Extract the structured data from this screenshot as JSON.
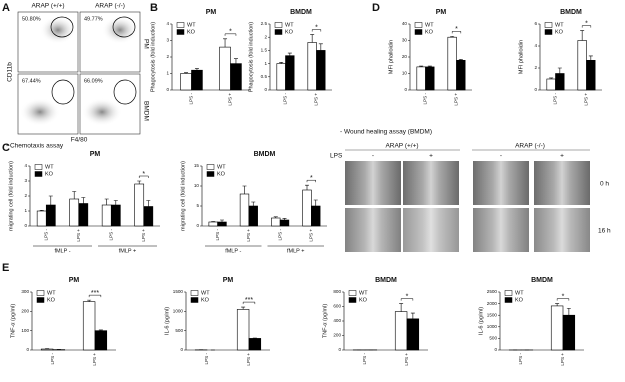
{
  "panel_labels": [
    "A",
    "B",
    "C",
    "D",
    "E"
  ],
  "flow_cytometry": {
    "columns": [
      "ARAP (+/+)",
      "ARAP (-/-)"
    ],
    "rows": [
      "PM",
      "BMDM"
    ],
    "percentages": [
      "50.80%",
      "49.77%",
      "67.44%",
      "66.09%"
    ],
    "y_axis": "CD11b",
    "x_axis": "F4/80"
  },
  "wound_healing": {
    "title": "- Wound healing assay (BMDM)",
    "columns": [
      "ARAP (+/+)",
      "ARAP (-/-)"
    ],
    "treatment": "LPS",
    "conditions": [
      "-",
      "+",
      "-",
      "+"
    ],
    "rows": [
      "0 h",
      "16 h"
    ]
  },
  "chart_data": [
    {
      "type": "bar",
      "title": "PM",
      "y_label": "Phagocytosis (fold induction)",
      "categories": [
        "LPS -",
        "LPS +"
      ],
      "series": [
        {
          "name": "WT",
          "color": "#ffffff",
          "values": [
            1.0,
            2.6
          ],
          "errors": [
            0.05,
            0.5
          ]
        },
        {
          "name": "KO",
          "color": "#000000",
          "values": [
            1.2,
            1.6
          ],
          "errors": [
            0.1,
            0.3
          ]
        }
      ],
      "ylim": [
        0,
        4
      ],
      "yticks": [
        0,
        1,
        2,
        3,
        4
      ],
      "legend": "top-left",
      "significance": "*"
    },
    {
      "type": "bar",
      "title": "BMDM",
      "y_label": "Phagocytosis (fold induction)",
      "categories": [
        "LPS -",
        "LPS +"
      ],
      "series": [
        {
          "name": "WT",
          "color": "#ffffff",
          "values": [
            1.0,
            1.8
          ],
          "errors": [
            0.05,
            0.3
          ]
        },
        {
          "name": "KO",
          "color": "#000000",
          "values": [
            1.3,
            1.5
          ],
          "errors": [
            0.1,
            0.25
          ]
        }
      ],
      "ylim": [
        0,
        2.5
      ],
      "yticks": [
        0,
        0.5,
        1,
        1.5,
        2,
        2.5
      ],
      "legend": "top-left",
      "significance": "*"
    },
    {
      "type": "bar",
      "title": "PM",
      "y_label": "MFI phalloidin",
      "categories": [
        "LPS -",
        "LPS +"
      ],
      "series": [
        {
          "name": "WT",
          "color": "#ffffff",
          "values": [
            14,
            32
          ],
          "errors": [
            0.5,
            0.5
          ]
        },
        {
          "name": "KO",
          "color": "#000000",
          "values": [
            14,
            18
          ],
          "errors": [
            0.5,
            0.5
          ]
        }
      ],
      "ylim": [
        0,
        40
      ],
      "yticks": [
        0,
        10,
        20,
        30,
        40
      ],
      "legend": "top-left",
      "significance": "*"
    },
    {
      "type": "bar",
      "title": "BMDM",
      "y_label": "MFI phalloidin",
      "categories": [
        "LPS -",
        "LPS +"
      ],
      "series": [
        {
          "name": "WT",
          "color": "#ffffff",
          "values": [
            1.0,
            4.5
          ],
          "errors": [
            0.1,
            0.9
          ]
        },
        {
          "name": "KO",
          "color": "#000000",
          "values": [
            1.5,
            2.7
          ],
          "errors": [
            0.5,
            0.4
          ]
        }
      ],
      "ylim": [
        0,
        6
      ],
      "yticks": [
        0,
        2,
        4,
        6
      ],
      "legend": "top-left",
      "significance": "*"
    },
    {
      "type": "bar",
      "title": "PM",
      "subtitle": "- Chemotaxis assay",
      "y_label": "migrating cell (fold induction)",
      "categories": [
        "LPS -",
        "LPS +",
        "LPS -",
        "LPS +"
      ],
      "group_labels": [
        "fMLP -",
        "fMLP +"
      ],
      "series": [
        {
          "name": "WT",
          "color": "#ffffff",
          "values": [
            1.0,
            1.8,
            1.4,
            2.8
          ],
          "errors": [
            0.05,
            0.5,
            0.4,
            0.2
          ]
        },
        {
          "name": "KO",
          "color": "#000000",
          "values": [
            1.4,
            1.5,
            1.4,
            1.3
          ],
          "errors": [
            0.6,
            0.4,
            0.3,
            0.4
          ]
        }
      ],
      "ylim": [
        0,
        4
      ],
      "yticks": [
        0,
        1,
        2,
        3,
        4
      ],
      "legend": "top-left",
      "significance": "*"
    },
    {
      "type": "bar",
      "title": "BMDM",
      "y_label": "migrating cell (fold induction)",
      "categories": [
        "LPS -",
        "LPS +",
        "LPS -",
        "LPS +"
      ],
      "group_labels": [
        "fMLP -",
        "fMLP +"
      ],
      "series": [
        {
          "name": "WT",
          "color": "#ffffff",
          "values": [
            1.0,
            8.0,
            2.0,
            9.0
          ],
          "errors": [
            0.1,
            2.0,
            0.3,
            1.2
          ]
        },
        {
          "name": "KO",
          "color": "#000000",
          "values": [
            1.0,
            5.0,
            1.5,
            5.0
          ],
          "errors": [
            0.5,
            1.0,
            0.4,
            1.5
          ]
        }
      ],
      "ylim": [
        0,
        15
      ],
      "yticks": [
        0,
        5,
        10,
        15
      ],
      "legend": "top-left",
      "significance": "*"
    },
    {
      "type": "bar",
      "title": "PM",
      "y_label": "TNF-α (pg/ml)",
      "categories": [
        "LPS -",
        "LPS +"
      ],
      "series": [
        {
          "name": "WT",
          "color": "#ffffff",
          "values": [
            5,
            250
          ],
          "errors": [
            2,
            8
          ]
        },
        {
          "name": "KO",
          "color": "#000000",
          "values": [
            2,
            100
          ],
          "errors": [
            1,
            4
          ]
        }
      ],
      "ylim": [
        0,
        300
      ],
      "yticks": [
        0,
        100,
        200,
        300
      ],
      "legend": "top-left",
      "significance": "***"
    },
    {
      "type": "bar",
      "title": "PM",
      "y_label": "IL-6 (pg/ml)",
      "categories": [
        "LPS -",
        "LPS +"
      ],
      "series": [
        {
          "name": "WT",
          "color": "#ffffff",
          "values": [
            5,
            1050
          ],
          "errors": [
            3,
            60
          ]
        },
        {
          "name": "KO",
          "color": "#000000",
          "values": [
            0,
            300
          ],
          "errors": [
            0,
            10
          ]
        }
      ],
      "ylim": [
        0,
        1500
      ],
      "yticks": [
        0,
        500,
        1000,
        1500
      ],
      "legend": "top-left",
      "significance": "***"
    },
    {
      "type": "bar",
      "title": "BMDM",
      "y_label": "TNF-α (pg/ml)",
      "categories": [
        "LPS -",
        "LPS +"
      ],
      "series": [
        {
          "name": "WT",
          "color": "#ffffff",
          "values": [
            2,
            530
          ],
          "errors": [
            1,
            110
          ]
        },
        {
          "name": "KO",
          "color": "#000000",
          "values": [
            2,
            430
          ],
          "errors": [
            1,
            80
          ]
        }
      ],
      "ylim": [
        0,
        800
      ],
      "yticks": [
        0,
        200,
        400,
        600,
        800
      ],
      "legend": "top-left",
      "significance": "*"
    },
    {
      "type": "bar",
      "title": "BMDM",
      "y_label": "IL-6 (pg/ml)",
      "categories": [
        "LPS -",
        "LPS +"
      ],
      "series": [
        {
          "name": "WT",
          "color": "#ffffff",
          "values": [
            2,
            1900
          ],
          "errors": [
            1,
            100
          ]
        },
        {
          "name": "KO",
          "color": "#000000",
          "values": [
            2,
            1500
          ],
          "errors": [
            1,
            300
          ]
        }
      ],
      "ylim": [
        0,
        2500
      ],
      "yticks": [
        0,
        500,
        1000,
        1500,
        2000,
        2500
      ],
      "legend": "top-left",
      "significance": "*"
    }
  ]
}
